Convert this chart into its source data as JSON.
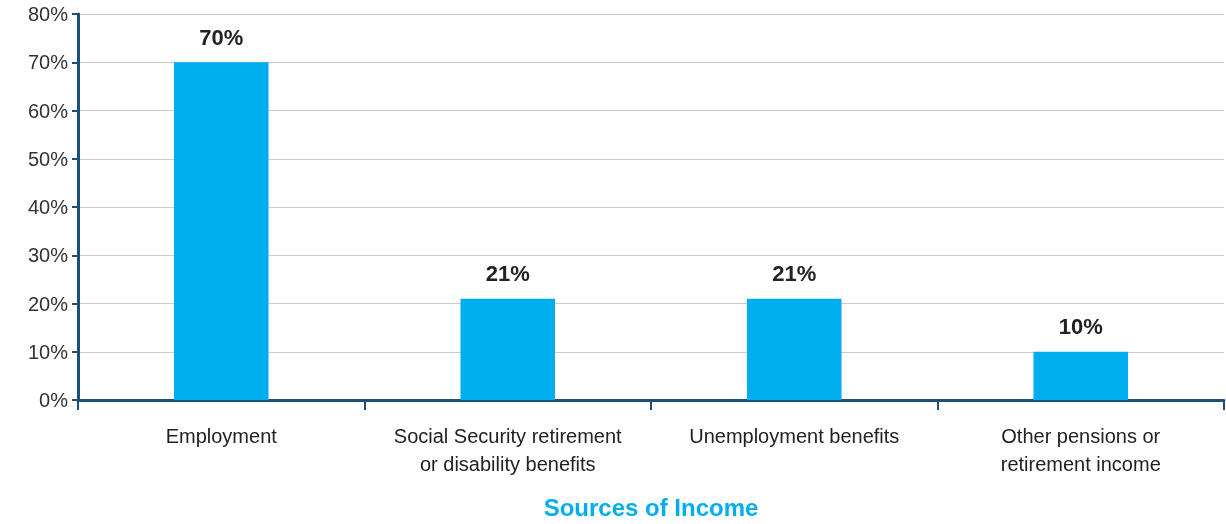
{
  "chart_data": {
    "type": "bar",
    "xlabel": "Sources of Income",
    "categories": [
      "Employment",
      "Social Security retirement\nor disability benefits",
      "Unemployment benefits",
      "Other pensions or\nretirement income"
    ],
    "values": [
      70,
      21,
      21,
      10
    ],
    "value_labels": [
      "70%",
      "21%",
      "21%",
      "10%"
    ],
    "color": "#00aeef",
    "ylim": [
      0,
      80
    ],
    "yticks": [
      {
        "value": 0,
        "label": "0%"
      },
      {
        "value": 10,
        "label": "10%"
      },
      {
        "value": 20,
        "label": "20%"
      },
      {
        "value": 30,
        "label": "30%"
      },
      {
        "value": 40,
        "label": "40%"
      },
      {
        "value": 50,
        "label": "50%"
      },
      {
        "value": 60,
        "label": "60%"
      },
      {
        "value": 70,
        "label": "70%"
      },
      {
        "value": 80,
        "label": "80%"
      }
    ],
    "grid": "y"
  }
}
